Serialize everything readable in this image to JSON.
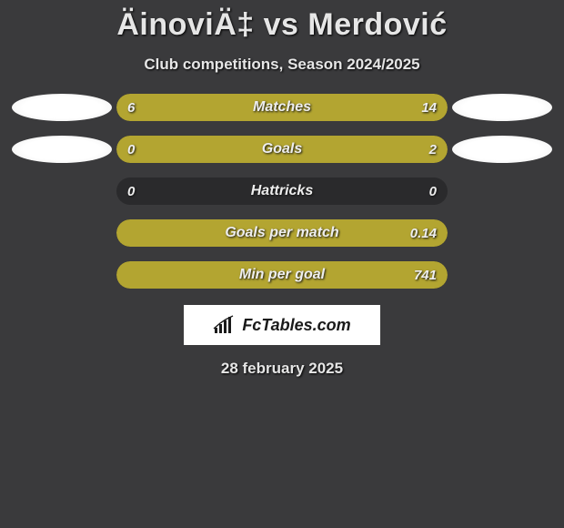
{
  "title": "ÄinoviÄ‡ vs Merdović",
  "subtitle": "Club competitions, Season 2024/2025",
  "date": "28 february 2025",
  "colors": {
    "background": "#3a3a3c",
    "bar_bg": "#2a2a2c",
    "bar_fill": "#b3a531",
    "text": "#e6e6e6",
    "brand_bg": "#ffffff",
    "brand_text": "#1a1a1a"
  },
  "brand": {
    "name": "FcTables.com"
  },
  "rows": [
    {
      "label": "Matches",
      "left_val": "6",
      "right_val": "14",
      "left_pct": 26,
      "right_pct": 0,
      "full_right": true,
      "show_left_ellipse": true,
      "show_right_ellipse": true
    },
    {
      "label": "Goals",
      "left_val": "0",
      "right_val": "2",
      "left_pct": 0,
      "right_pct": 100,
      "full_right": true,
      "show_left_ellipse": true,
      "show_right_ellipse": true
    },
    {
      "label": "Hattricks",
      "left_val": "0",
      "right_val": "0",
      "left_pct": 0,
      "right_pct": 0,
      "full_right": false,
      "show_left_ellipse": false,
      "show_right_ellipse": false
    },
    {
      "label": "Goals per match",
      "left_val": "",
      "right_val": "0.14",
      "left_pct": 0,
      "right_pct": 100,
      "full_right": true,
      "show_left_ellipse": false,
      "show_right_ellipse": false
    },
    {
      "label": "Min per goal",
      "left_val": "",
      "right_val": "741",
      "left_pct": 0,
      "right_pct": 100,
      "full_right": true,
      "show_left_ellipse": false,
      "show_right_ellipse": false
    }
  ]
}
